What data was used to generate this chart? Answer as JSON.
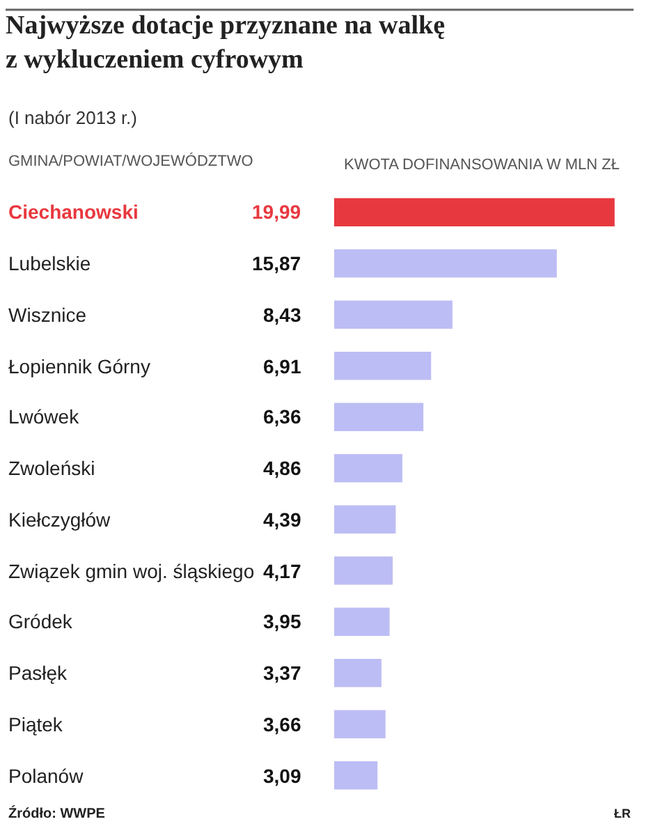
{
  "chart_data": {
    "type": "bar",
    "orientation": "horizontal",
    "title": "Najwyższe dotacje przyznane na walkę\nz wykluczeniem cyfrowym",
    "subtitle": "(I nabór 2013 r.)",
    "ylabel": "GMINA/POWIAT/WOJEWÓDZTWO",
    "xlabel": "KWOTA DOFINANSOWANIA W MLN ZŁ",
    "categories": [
      "Ciechanowski",
      "Lubelskie",
      "Wisznice",
      "Łopiennik Górny",
      "Lwówek",
      "Zwoleński",
      "Kiełczygłów",
      "Związek gmin woj. śląskiego",
      "Gródek",
      "Pasłęk",
      "Piątek",
      "Polanów"
    ],
    "values": [
      19.99,
      15.87,
      8.43,
      6.91,
      6.36,
      4.86,
      4.39,
      4.17,
      3.95,
      3.37,
      3.66,
      3.09
    ],
    "value_labels": [
      "19,99",
      "15,87",
      "8,43",
      "6,91",
      "6,36",
      "4,86",
      "4,39",
      "4,17",
      "3,95",
      "3,37",
      "3,66",
      "3,09"
    ],
    "colors": [
      "#e8383f",
      "#bdbdf5",
      "#bdbdf5",
      "#bdbdf5",
      "#bdbdf5",
      "#bdbdf5",
      "#bdbdf5",
      "#bdbdf5",
      "#bdbdf5",
      "#bdbdf5",
      "#bdbdf5",
      "#bdbdf5"
    ],
    "annotations": [
      "Źródło: WWPE",
      "ŁR"
    ]
  }
}
